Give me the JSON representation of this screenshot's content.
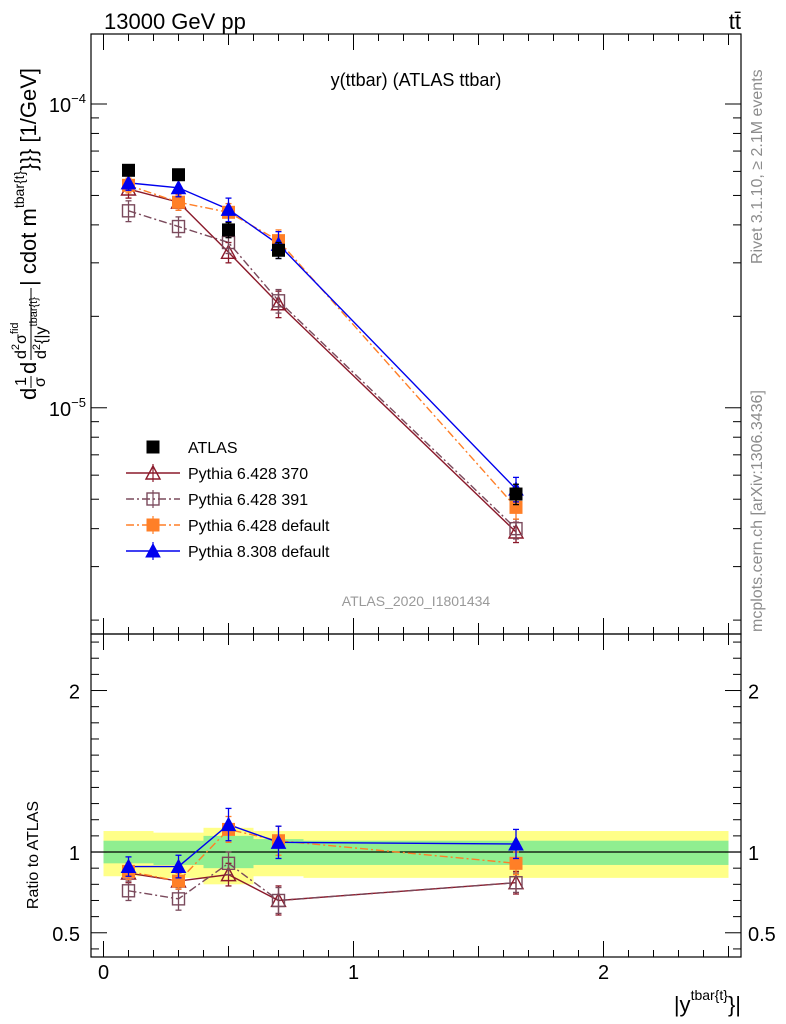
{
  "header": {
    "energy_label": "13000 GeV pp",
    "process_label": "tt̄"
  },
  "side_labels": {
    "rivet": "Rivet 3.1.10, ≥ 2.1M events",
    "site": "mcplots.cern.ch [arXiv:1306.3436]"
  },
  "chart_data": [
    {
      "type": "line",
      "title": "y(ttbar) (ATLAS ttbar)",
      "ylabel": "d(1/σ)d²σ^fid / d²{|y^tbar{t}|} cdot m^tbar{t}}}} [1/GeV]",
      "ylabel_parts": {
        "d1": "d",
        "frac1_num": "1",
        "frac1_den": "σ",
        "d2": "d",
        "frac2_num_d": "d",
        "frac2_num_sup2": "2",
        "frac2_num_sigma": "σ",
        "frac2_num_sup": "fid",
        "frac2_den_d": "d",
        "frac2_den_sup2": "2",
        "frac2_den_rest": "{|y",
        "frac2_den_sup": "tbar{t}",
        "tail_main": "| cdot m",
        "tail_sup": "tbar{t}",
        "tail_end": "}}} [1/GeV]"
      },
      "y_scale": "log",
      "xlim": [
        -0.05,
        2.55
      ],
      "ylim": [
        1.8e-06,
        0.00017
      ],
      "y_tick_labels": [
        {
          "value": 0.0001,
          "mantissa": "10",
          "exponent": "−4"
        },
        {
          "value": 1e-05,
          "mantissa": "10",
          "exponent": "−5"
        }
      ],
      "x": [
        0.1,
        0.3,
        0.5,
        0.7,
        1.65
      ],
      "series": [
        {
          "name": "ATLAS",
          "color": "#000000",
          "marker": "filled-square",
          "line": "none",
          "values": [
            6.05e-05,
            5.85e-05,
            3.85e-05,
            3.3e-05,
            5.2e-06
          ],
          "errors": [
            2.5e-06,
            2.2e-06,
            2.2e-06,
            2e-06,
            4e-07
          ]
        },
        {
          "name": "Pythia 6.428 370",
          "color": "#8b1a2b",
          "marker": "open-triangle",
          "line": "solid",
          "values": [
            5.25e-05,
            4.75e-05,
            3.25e-05,
            2.2e-05,
            3.9e-06
          ],
          "errors": [
            3.5e-06,
            2.8e-06,
            2.5e-06,
            2.2e-06,
            3e-07
          ]
        },
        {
          "name": "Pythia 6.428 391",
          "color": "#7a4a5c",
          "marker": "open-square",
          "line": "dashdot",
          "values": [
            4.45e-05,
            3.95e-05,
            3.5e-05,
            2.25e-05,
            4e-06
          ],
          "errors": [
            3.5e-06,
            3e-06,
            2.8e-06,
            2e-06,
            3e-07
          ]
        },
        {
          "name": "Pythia 6.428 default",
          "color": "#ff7f27",
          "marker": "filled-square",
          "line": "dashdot",
          "values": [
            5.4e-05,
            4.75e-05,
            4.4e-05,
            3.55e-05,
            4.7e-06
          ],
          "errors": [
            3e-06,
            2.8e-06,
            3e-06,
            3e-06,
            4e-07
          ]
        },
        {
          "name": "Pythia 8.308 default",
          "color": "#0000ee",
          "marker": "filled-triangle",
          "line": "solid",
          "values": [
            5.5e-05,
            5.3e-05,
            4.5e-05,
            3.45e-05,
            5.4e-06
          ],
          "errors": [
            3e-06,
            3.5e-06,
            4e-06,
            3.5e-06,
            5e-07
          ]
        }
      ],
      "legend_position": "lower-left",
      "watermark": "ATLAS_2020_I1801434"
    },
    {
      "type": "line",
      "ylabel": "Ratio to ATLAS",
      "xlabel_main": "|y",
      "xlabel_sup": "tbar{t}",
      "xlabel_end": "}|",
      "xlim": [
        -0.05,
        2.55
      ],
      "ylim": [
        0.35,
        2.35
      ],
      "x_ticks": [
        0,
        1,
        2
      ],
      "x_tick_labels": [
        "0",
        "1",
        "2"
      ],
      "y_ticks": [
        0.5,
        1,
        2
      ],
      "y_tick_labels": [
        "0.5",
        "1",
        "2"
      ],
      "reference_line": 1,
      "uncertainty_bands": [
        {
          "x0": 0.0,
          "x1": 0.2,
          "inner": [
            0.93,
            1.07
          ],
          "outer": [
            0.85,
            1.13
          ]
        },
        {
          "x0": 0.2,
          "x1": 0.4,
          "inner": [
            0.92,
            1.07
          ],
          "outer": [
            0.84,
            1.12
          ]
        },
        {
          "x0": 0.4,
          "x1": 0.6,
          "inner": [
            0.9,
            1.1
          ],
          "outer": [
            0.8,
            1.15
          ]
        },
        {
          "x0": 0.6,
          "x1": 0.8,
          "inner": [
            0.92,
            1.08
          ],
          "outer": [
            0.85,
            1.13
          ]
        },
        {
          "x0": 0.8,
          "x1": 2.5,
          "inner": [
            0.92,
            1.07
          ],
          "outer": [
            0.84,
            1.13
          ]
        }
      ],
      "x": [
        0.1,
        0.3,
        0.5,
        0.7,
        1.65
      ],
      "series": [
        {
          "name": "Pythia 6.428 370",
          "color": "#8b1a2b",
          "marker": "open-triangle",
          "line": "solid",
          "values": [
            0.87,
            0.82,
            0.86,
            0.7,
            0.81
          ],
          "errors": [
            0.06,
            0.05,
            0.07,
            0.09,
            0.07
          ]
        },
        {
          "name": "Pythia 6.428 391",
          "color": "#7a4a5c",
          "marker": "open-square",
          "line": "dashdot",
          "values": [
            0.76,
            0.71,
            0.93,
            0.7,
            0.81
          ],
          "errors": [
            0.06,
            0.07,
            0.07,
            0.08,
            0.06
          ]
        },
        {
          "name": "Pythia 6.428 default",
          "color": "#ff7f27",
          "marker": "filled-square",
          "line": "dashdot",
          "values": [
            0.88,
            0.82,
            1.14,
            1.07,
            0.93
          ],
          "errors": [
            0.05,
            0.05,
            0.08,
            0.09,
            0.07
          ]
        },
        {
          "name": "Pythia 8.308 default",
          "color": "#0000ee",
          "marker": "filled-triangle",
          "line": "solid",
          "values": [
            0.91,
            0.91,
            1.17,
            1.06,
            1.05
          ],
          "errors": [
            0.06,
            0.07,
            0.1,
            0.1,
            0.09
          ]
        }
      ]
    }
  ]
}
